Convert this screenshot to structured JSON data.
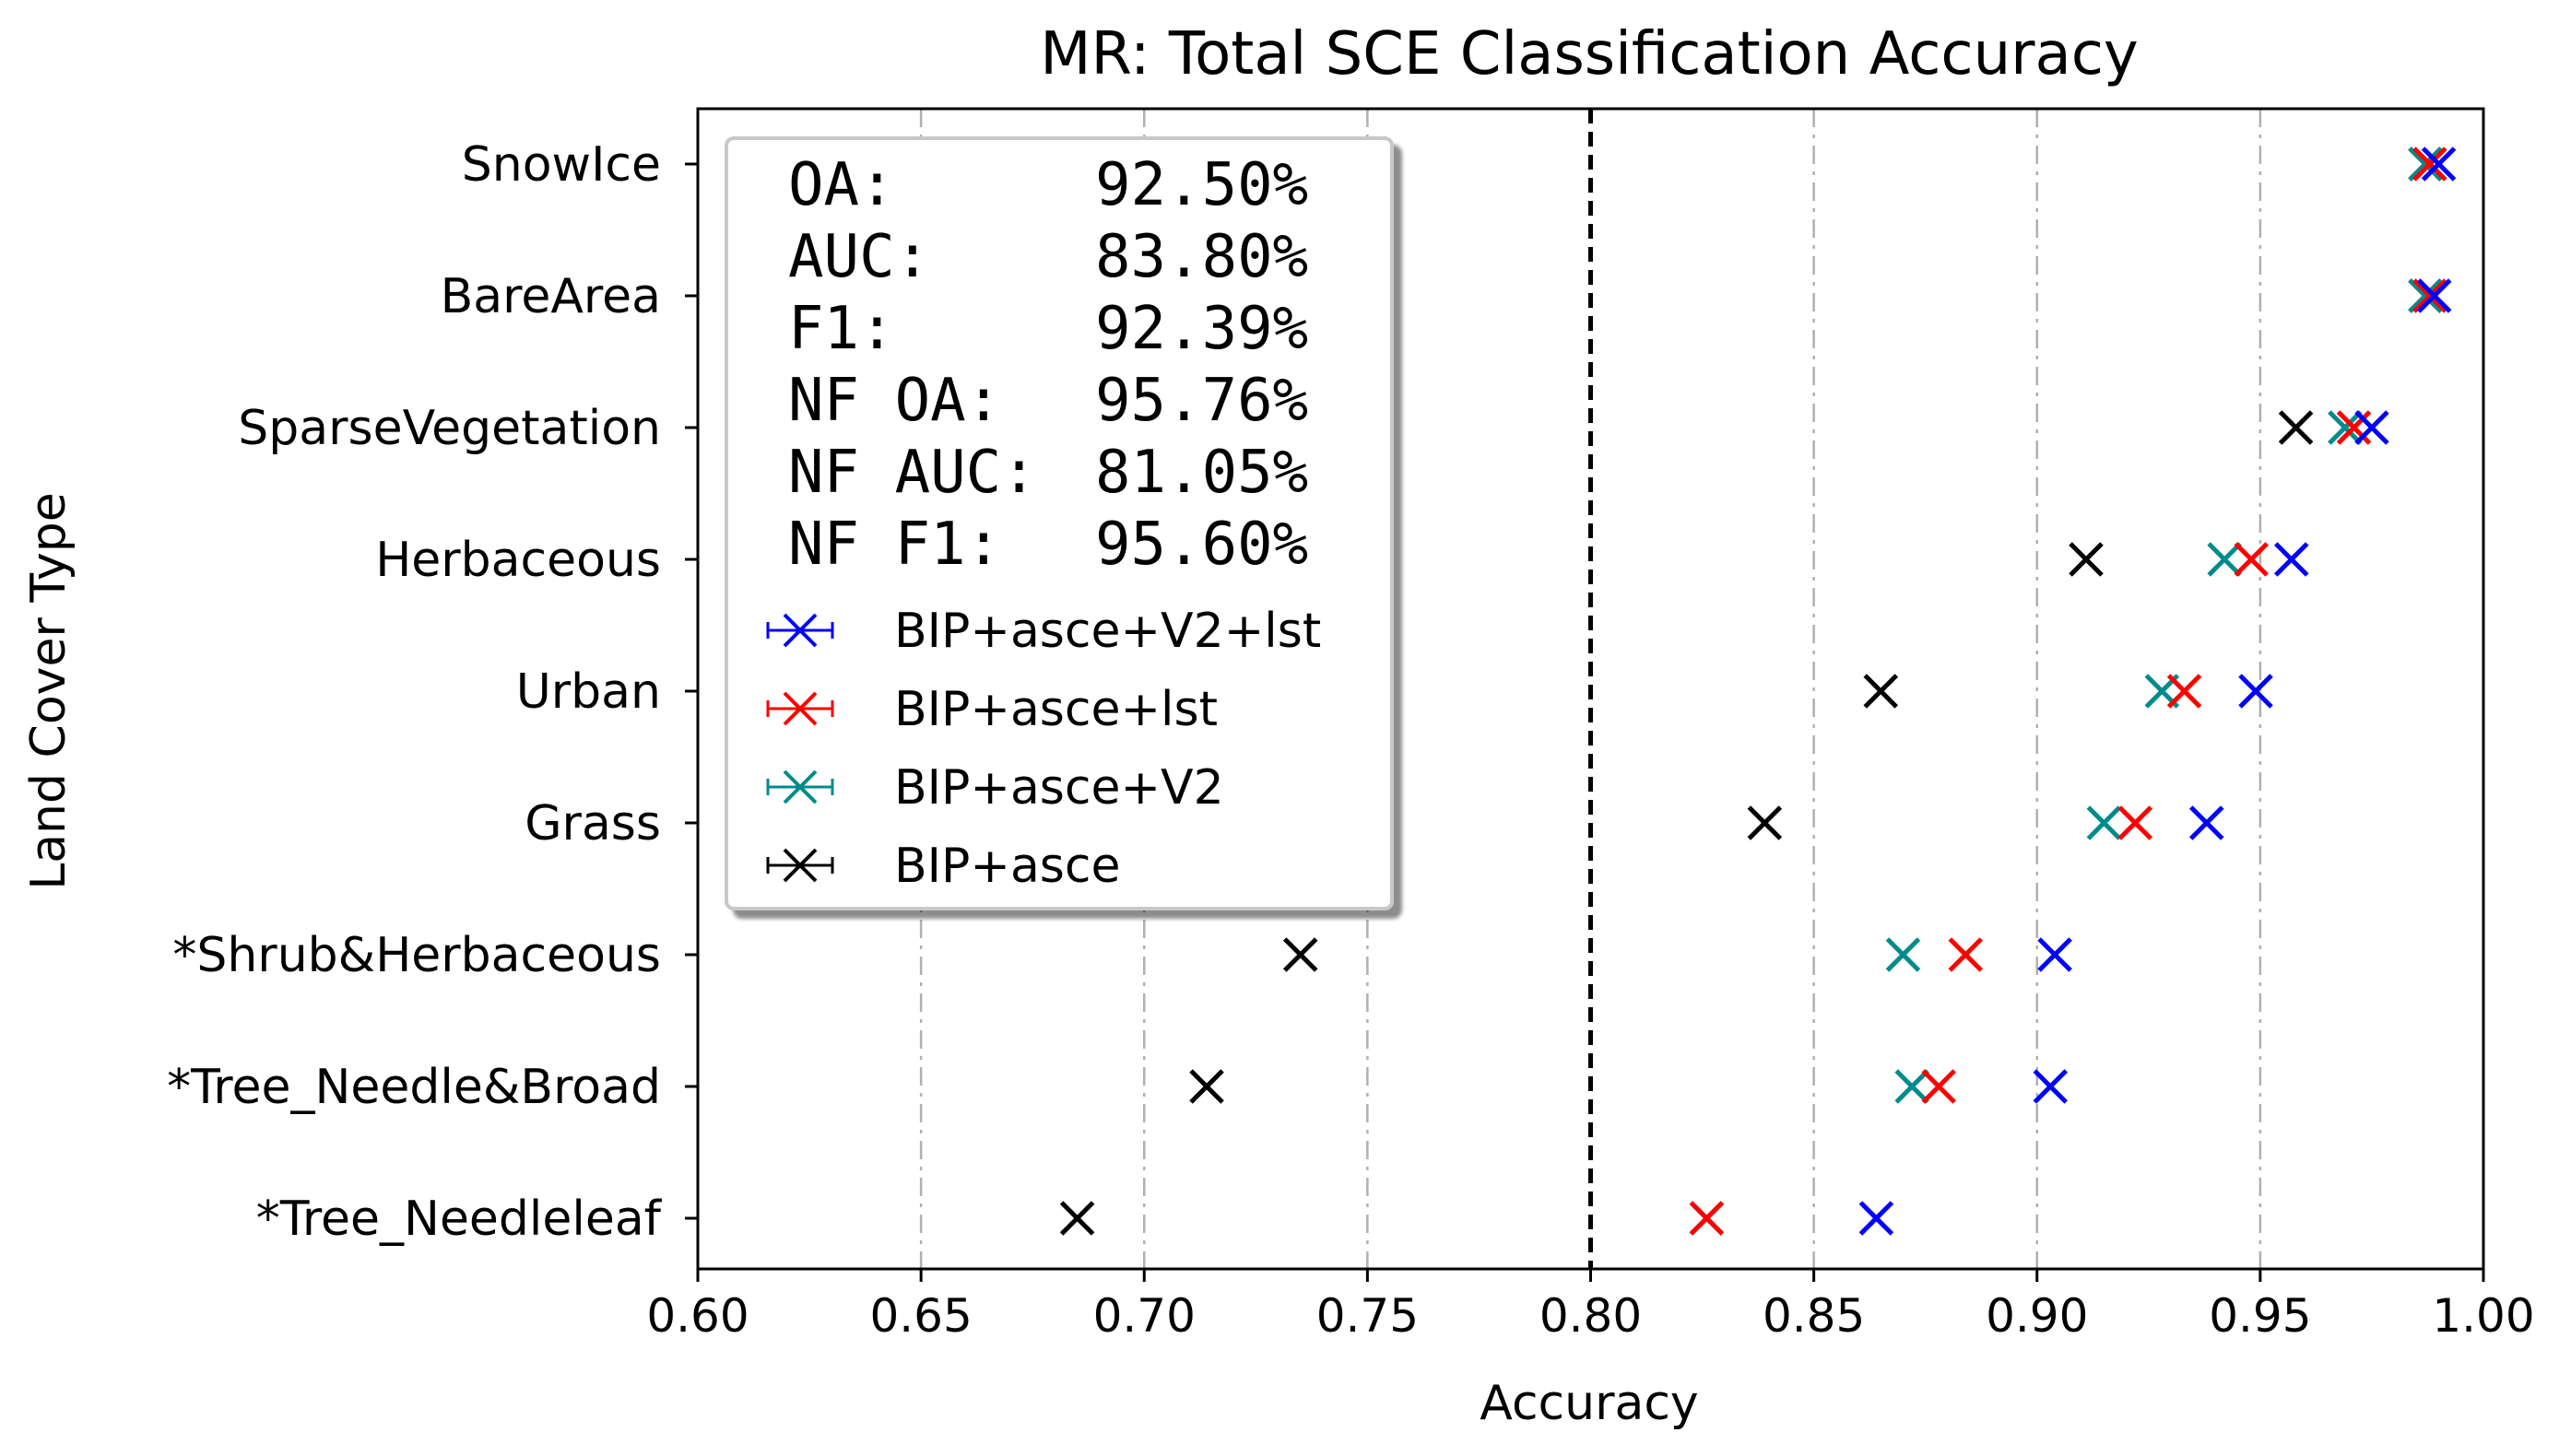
{
  "chart_data": {
    "type": "scatter",
    "title": "MR: Total SCE Classification Accuracy",
    "xlabel": "Accuracy",
    "ylabel": "Land Cover Type",
    "xlim": [
      0.6,
      1.0
    ],
    "xticks": [
      "0.60",
      "0.65",
      "0.70",
      "0.75",
      "0.80",
      "0.85",
      "0.90",
      "0.95",
      "1.00"
    ],
    "grid": "vertical dash-dot at 0.65, 0.70, 0.75, 0.85, 0.90, 0.95",
    "reference_line": 0.8,
    "categories": [
      "SnowIce",
      "BareArea",
      "SparseVegetation",
      "Herbaceous",
      "Urban",
      "Grass",
      "*Shrub&Herbaceous",
      "*Tree_Needle&Broad",
      "*Tree_Needleleaf"
    ],
    "series": [
      {
        "name": "BIP+asce+V2+lst",
        "color": "#0000ff",
        "values": [
          0.99,
          0.989,
          0.975,
          0.957,
          0.949,
          0.938,
          0.904,
          0.903,
          0.864
        ]
      },
      {
        "name": "BIP+asce+lst",
        "color": "#ff0000",
        "values": [
          0.988,
          0.988,
          0.971,
          0.948,
          0.933,
          0.922,
          0.884,
          0.878,
          0.826
        ]
      },
      {
        "name": "BIP+asce+V2",
        "color": "#008b8b",
        "values": [
          0.987,
          0.987,
          0.969,
          0.942,
          0.928,
          0.915,
          0.87,
          0.872,
          0.826
        ]
      },
      {
        "name": "BIP+asce",
        "color": "#000000",
        "values": [
          0.987,
          0.987,
          0.958,
          0.911,
          0.865,
          0.839,
          0.735,
          0.714,
          0.685
        ]
      }
    ],
    "metrics": [
      {
        "label": "OA:",
        "value": "92.50%"
      },
      {
        "label": "AUC:",
        "value": "83.80%"
      },
      {
        "label": "F1:",
        "value": "92.39%"
      },
      {
        "label": "NF OA:",
        "value": "95.76%"
      },
      {
        "label": "NF AUC:",
        "value": "81.05%"
      },
      {
        "label": "NF F1:",
        "value": "95.60%"
      }
    ],
    "legend_position": "upper-left"
  }
}
